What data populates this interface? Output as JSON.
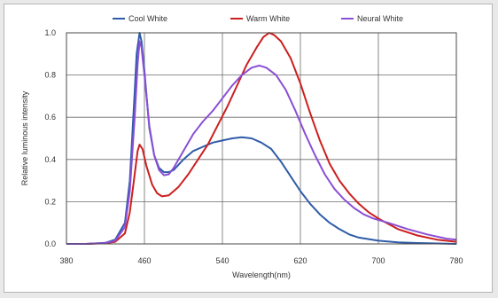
{
  "chart_data": {
    "type": "line",
    "title": "",
    "xlabel": "Wavelength(nm)",
    "ylabel": "Relative luminous intensity",
    "xlim": [
      380,
      780
    ],
    "ylim": [
      0,
      1.0
    ],
    "x_ticks": [
      "380",
      "460",
      "540",
      "620",
      "700",
      "780"
    ],
    "y_ticks": [
      "0.0",
      "0.2",
      "0.4",
      "0.6",
      "0.8",
      "1.0"
    ],
    "grid": true,
    "legend_position": "top",
    "series": [
      {
        "name": "Cool White",
        "color": "#2f5ba8",
        "points": [
          [
            380,
            0
          ],
          [
            400,
            0
          ],
          [
            420,
            0.005
          ],
          [
            430,
            0.02
          ],
          [
            440,
            0.1
          ],
          [
            445,
            0.3
          ],
          [
            450,
            0.72
          ],
          [
            452,
            0.9
          ],
          [
            455,
            1.0
          ],
          [
            457,
            0.96
          ],
          [
            460,
            0.82
          ],
          [
            465,
            0.55
          ],
          [
            470,
            0.42
          ],
          [
            475,
            0.36
          ],
          [
            480,
            0.34
          ],
          [
            485,
            0.34
          ],
          [
            490,
            0.35
          ],
          [
            500,
            0.4
          ],
          [
            510,
            0.44
          ],
          [
            520,
            0.46
          ],
          [
            530,
            0.48
          ],
          [
            540,
            0.49
          ],
          [
            550,
            0.5
          ],
          [
            560,
            0.505
          ],
          [
            570,
            0.5
          ],
          [
            580,
            0.48
          ],
          [
            590,
            0.45
          ],
          [
            600,
            0.39
          ],
          [
            610,
            0.32
          ],
          [
            620,
            0.25
          ],
          [
            630,
            0.19
          ],
          [
            640,
            0.14
          ],
          [
            650,
            0.1
          ],
          [
            660,
            0.07
          ],
          [
            670,
            0.045
          ],
          [
            680,
            0.03
          ],
          [
            700,
            0.015
          ],
          [
            720,
            0.007
          ],
          [
            740,
            0.004
          ],
          [
            760,
            0.002
          ],
          [
            780,
            0
          ]
        ]
      },
      {
        "name": "Warm White",
        "color": "#cc1f1f",
        "points": [
          [
            380,
            0
          ],
          [
            400,
            0
          ],
          [
            420,
            0.003
          ],
          [
            430,
            0.01
          ],
          [
            440,
            0.05
          ],
          [
            445,
            0.15
          ],
          [
            450,
            0.33
          ],
          [
            453,
            0.44
          ],
          [
            455,
            0.47
          ],
          [
            458,
            0.45
          ],
          [
            462,
            0.37
          ],
          [
            468,
            0.28
          ],
          [
            473,
            0.24
          ],
          [
            478,
            0.225
          ],
          [
            485,
            0.23
          ],
          [
            495,
            0.27
          ],
          [
            505,
            0.33
          ],
          [
            515,
            0.4
          ],
          [
            525,
            0.47
          ],
          [
            535,
            0.56
          ],
          [
            545,
            0.65
          ],
          [
            555,
            0.75
          ],
          [
            565,
            0.85
          ],
          [
            575,
            0.93
          ],
          [
            582,
            0.98
          ],
          [
            588,
            1.0
          ],
          [
            593,
            0.99
          ],
          [
            600,
            0.96
          ],
          [
            610,
            0.88
          ],
          [
            620,
            0.76
          ],
          [
            630,
            0.62
          ],
          [
            640,
            0.49
          ],
          [
            650,
            0.38
          ],
          [
            660,
            0.3
          ],
          [
            670,
            0.24
          ],
          [
            680,
            0.19
          ],
          [
            690,
            0.15
          ],
          [
            700,
            0.12
          ],
          [
            720,
            0.07
          ],
          [
            740,
            0.04
          ],
          [
            760,
            0.02
          ],
          [
            780,
            0.01
          ]
        ]
      },
      {
        "name": "Neural White",
        "color": "#8a4fd6",
        "points": [
          [
            380,
            0
          ],
          [
            400,
            0
          ],
          [
            420,
            0.004
          ],
          [
            430,
            0.015
          ],
          [
            440,
            0.08
          ],
          [
            445,
            0.25
          ],
          [
            450,
            0.6
          ],
          [
            453,
            0.85
          ],
          [
            455,
            0.96
          ],
          [
            457,
            0.93
          ],
          [
            460,
            0.8
          ],
          [
            465,
            0.56
          ],
          [
            470,
            0.42
          ],
          [
            475,
            0.35
          ],
          [
            480,
            0.325
          ],
          [
            485,
            0.33
          ],
          [
            490,
            0.36
          ],
          [
            500,
            0.44
          ],
          [
            510,
            0.52
          ],
          [
            520,
            0.58
          ],
          [
            530,
            0.63
          ],
          [
            540,
            0.69
          ],
          [
            550,
            0.75
          ],
          [
            560,
            0.8
          ],
          [
            570,
            0.835
          ],
          [
            578,
            0.845
          ],
          [
            585,
            0.835
          ],
          [
            595,
            0.8
          ],
          [
            605,
            0.73
          ],
          [
            615,
            0.63
          ],
          [
            625,
            0.52
          ],
          [
            635,
            0.42
          ],
          [
            645,
            0.33
          ],
          [
            655,
            0.26
          ],
          [
            665,
            0.21
          ],
          [
            675,
            0.17
          ],
          [
            685,
            0.14
          ],
          [
            695,
            0.12
          ],
          [
            710,
            0.1
          ],
          [
            730,
            0.07
          ],
          [
            750,
            0.045
          ],
          [
            770,
            0.025
          ],
          [
            780,
            0.02
          ]
        ]
      }
    ]
  }
}
